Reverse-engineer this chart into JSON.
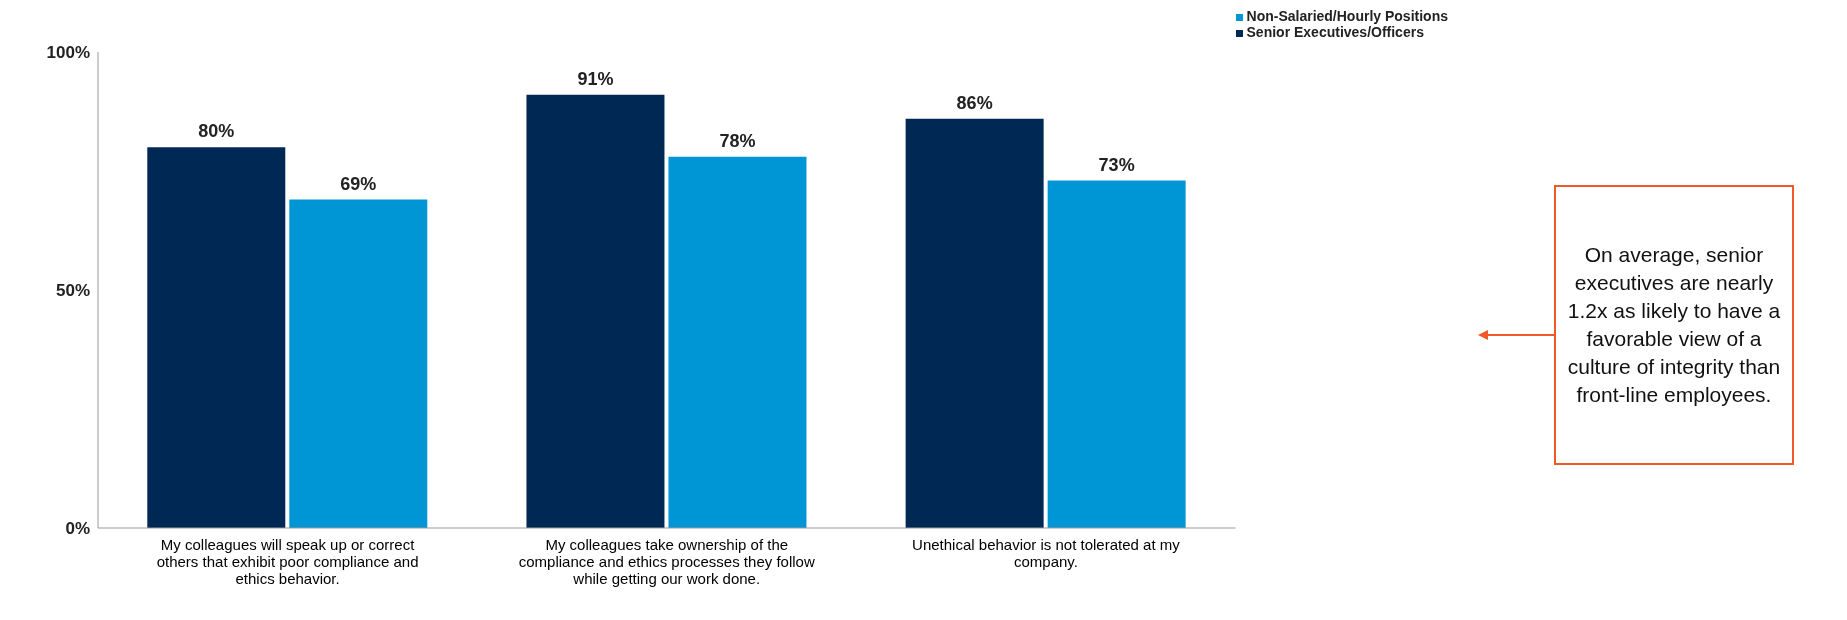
{
  "chart_data": {
    "type": "bar",
    "categories": [
      "My colleagues will speak up or correct others that exhibit poor compliance and ethics behavior.",
      "My colleagues take ownership of the compliance and ethics processes they follow while getting our work done.",
      "Unethical behavior is not tolerated at my company."
    ],
    "series": [
      {
        "name": "Senior Executives/Officers",
        "color": "#002855",
        "values": [
          80,
          91,
          86
        ],
        "value_labels": [
          "80%",
          "91%",
          "86%"
        ]
      },
      {
        "name": "Non-Salaried/Hourly Positions",
        "color": "#0096d6",
        "values": [
          69,
          78,
          73
        ],
        "value_labels": [
          "69%",
          "78%",
          "73%"
        ]
      }
    ],
    "ylim": [
      0,
      100
    ],
    "yticks": [
      {
        "value": 0,
        "label": "0%"
      },
      {
        "value": 50,
        "label": "50%"
      },
      {
        "value": 100,
        "label": "100%"
      }
    ],
    "grid": false,
    "legend": "top right",
    "annotations": [
      "On average, senior executives are nearly 1.2x as likely to have a favorable view of a culture of integrity than front-line employees."
    ]
  }
}
